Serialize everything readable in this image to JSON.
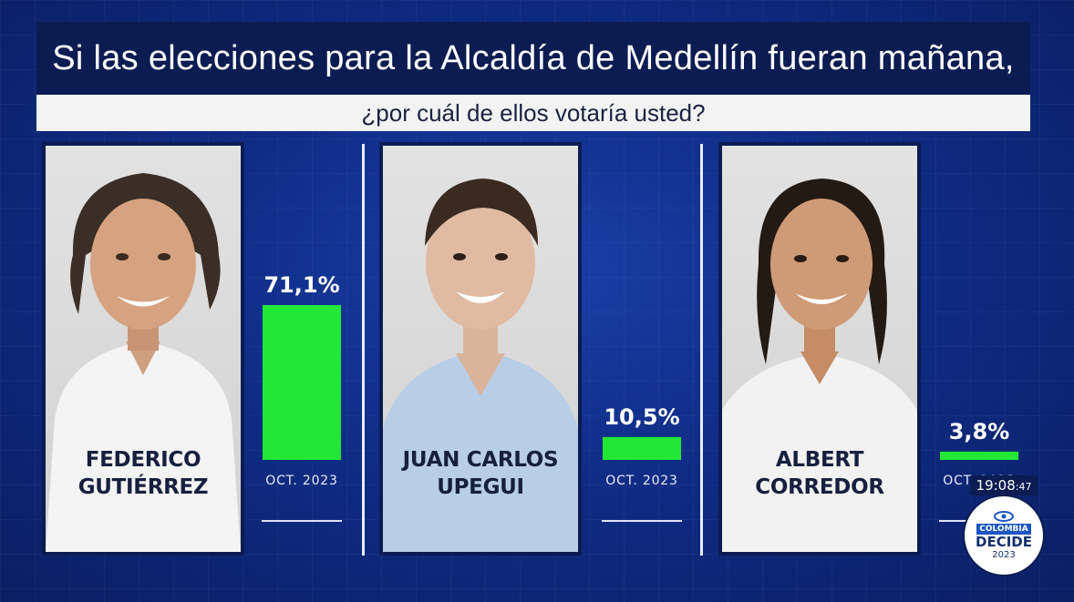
{
  "header": {
    "title": "Si las elecciones para la Alcaldía de Medellín fueran mañana,",
    "subtitle": "¿por cuál de ellos votaría usted?"
  },
  "candidates": [
    {
      "name_line1": "FEDERICO",
      "name_line2": "GUTIÉRREZ"
    },
    {
      "name_line1": "JUAN CARLOS",
      "name_line2": "UPEGUI"
    },
    {
      "name_line1": "ALBERT",
      "name_line2": "CORREDOR"
    }
  ],
  "chart_data": {
    "type": "bar",
    "categories": [
      "FEDERICO GUTIÉRREZ",
      "JUAN CARLOS UPEGUI",
      "ALBERT CORREDOR"
    ],
    "values": [
      71.1,
      10.5,
      3.8
    ],
    "value_labels": [
      "71,1%",
      "10,5%",
      "3,8%"
    ],
    "bar_period_labels": [
      "OCT. 2023",
      "OCT. 2023",
      "OCT. 2023"
    ],
    "ylim": [
      0,
      71.1
    ],
    "bar_color": "#22e835",
    "grid": false,
    "legend": "none"
  },
  "overlay": {
    "clock_main": "19:08",
    "clock_seconds": ":47",
    "logo_line1": "COLOMBIA",
    "logo_line2": "DECIDE",
    "logo_line3": "2023"
  },
  "colors": {
    "title_bg": "#0b1c52",
    "subtitle_bg": "#f3f3f3",
    "background": "#0f2c86"
  }
}
